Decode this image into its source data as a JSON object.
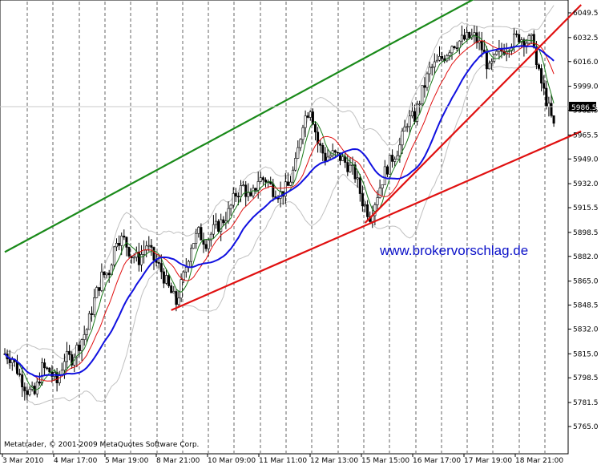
{
  "chart_data": {
    "type": "candlestick",
    "y_ticks": [
      "6049.5",
      "6032.5",
      "6016.0",
      "5999.0",
      "5982.5",
      "5965.5",
      "5949.0",
      "5932.0",
      "5915.5",
      "5898.5",
      "5882.0",
      "5865.0",
      "5848.5",
      "5832.0",
      "5815.0",
      "5798.5",
      "5781.5",
      "5765.0"
    ],
    "ylim": [
      5765.0,
      6049.5
    ],
    "x_ticks": [
      "3 Mar 2010",
      "4 Mar 17:00",
      "5 Mar 19:00",
      "8 Mar 21:00",
      "10 Mar 09:00",
      "11 Mar 11:00",
      "12 Mar 13:00",
      "15 Mar 15:00",
      "16 Mar 17:00",
      "17 Mar 19:00",
      "18 Mar 21:00"
    ],
    "current_price": "5986.5",
    "watermark": "www.brokervorschlag.de",
    "copyright": "Metatrader, © 2001-2009 MetaQuotes Software Corp.",
    "colors": {
      "bull_candle": "#ffffff",
      "bear_candle": "#000000",
      "ma_fast": "#1a7a1a",
      "ma_mid": "#e01010",
      "ma_slow": "#1010e0",
      "bands": "#c0c0c0",
      "trend_green": "#1a8a1a",
      "trend_red": "#e01010",
      "price_label_bg": "#000000",
      "grid": "#000000"
    },
    "trendlines": [
      {
        "color": "green",
        "from": {
          "bar": 0,
          "price": 5885
        },
        "to": {
          "bar": 190,
          "price": 6060
        }
      },
      {
        "color": "red",
        "from": {
          "bar": 67,
          "price": 5845
        },
        "to": {
          "bar": 232,
          "price": 5968
        }
      },
      {
        "color": "red",
        "from": {
          "bar": 145,
          "price": 5905
        },
        "to": {
          "bar": 232,
          "price": 6055
        }
      }
    ],
    "close_path": [
      [
        0,
        5815
      ],
      [
        3,
        5812
      ],
      [
        6,
        5800
      ],
      [
        9,
        5790
      ],
      [
        12,
        5787
      ],
      [
        15,
        5805
      ],
      [
        18,
        5803
      ],
      [
        21,
        5795
      ],
      [
        24,
        5812
      ],
      [
        27,
        5812
      ],
      [
        30,
        5822
      ],
      [
        33,
        5832
      ],
      [
        36,
        5852
      ],
      [
        39,
        5868
      ],
      [
        42,
        5872
      ],
      [
        45,
        5895
      ],
      [
        48,
        5893
      ],
      [
        51,
        5883
      ],
      [
        54,
        5880
      ],
      [
        57,
        5890
      ],
      [
        60,
        5880
      ],
      [
        63,
        5872
      ],
      [
        66,
        5860
      ],
      [
        69,
        5850
      ],
      [
        72,
        5868
      ],
      [
        75,
        5890
      ],
      [
        78,
        5898
      ],
      [
        81,
        5892
      ],
      [
        84,
        5900
      ],
      [
        87,
        5905
      ],
      [
        90,
        5912
      ],
      [
        93,
        5925
      ],
      [
        96,
        5930
      ],
      [
        99,
        5920
      ],
      [
        102,
        5935
      ],
      [
        105,
        5935
      ],
      [
        108,
        5928
      ],
      [
        111,
        5925
      ],
      [
        114,
        5930
      ],
      [
        117,
        5945
      ],
      [
        120,
        5975
      ],
      [
        123,
        5985
      ],
      [
        126,
        5960
      ],
      [
        129,
        5950
      ],
      [
        132,
        5952
      ],
      [
        135,
        5950
      ],
      [
        138,
        5945
      ],
      [
        141,
        5938
      ],
      [
        144,
        5920
      ],
      [
        147,
        5910
      ],
      [
        150,
        5925
      ],
      [
        153,
        5940
      ],
      [
        156,
        5950
      ],
      [
        159,
        5958
      ],
      [
        162,
        5975
      ],
      [
        165,
        5978
      ],
      [
        168,
        5995
      ],
      [
        171,
        6010
      ],
      [
        174,
        6015
      ],
      [
        177,
        6020
      ],
      [
        180,
        6028
      ],
      [
        183,
        6030
      ],
      [
        186,
        6032
      ],
      [
        189,
        6033
      ],
      [
        192,
        6025
      ],
      [
        195,
        6010
      ],
      [
        198,
        6020
      ],
      [
        201,
        6025
      ],
      [
        204,
        6030
      ],
      [
        207,
        6033
      ],
      [
        210,
        6030
      ],
      [
        213,
        6030
      ],
      [
        216,
        5965
      ]
    ]
  }
}
